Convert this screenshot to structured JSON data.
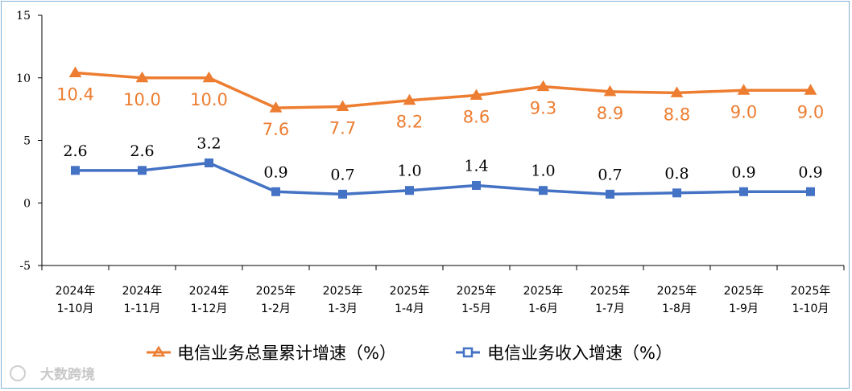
{
  "chart_data": {
    "type": "line",
    "title": "",
    "xlabel": "",
    "ylabel": "",
    "ylim": [
      -5,
      15
    ],
    "yticks": [
      -5,
      0,
      5,
      10,
      15
    ],
    "categories": [
      [
        "2024年",
        "1-10月"
      ],
      [
        "2024年",
        "1-11月"
      ],
      [
        "2024年",
        "1-12月"
      ],
      [
        "2025年",
        "1-2月"
      ],
      [
        "2025年",
        "1-3月"
      ],
      [
        "2025年",
        "1-4月"
      ],
      [
        "2025年",
        "1-5月"
      ],
      [
        "2025年",
        "1-6月"
      ],
      [
        "2025年",
        "1-7月"
      ],
      [
        "2025年",
        "1-8月"
      ],
      [
        "2025年",
        "1-9月"
      ],
      [
        "2025年",
        "1-10月"
      ]
    ],
    "series": [
      {
        "name": "电信业务总量累计增速（%）",
        "color": "#ED7D31",
        "marker": "triangle",
        "values": [
          10.4,
          10.0,
          10.0,
          7.6,
          7.7,
          8.2,
          8.6,
          9.3,
          8.9,
          8.8,
          9.0,
          9.0
        ],
        "labels": [
          "10.4",
          "10.0",
          "10.0",
          "7.6",
          "7.7",
          "8.2",
          "8.6",
          "9.3",
          "8.9",
          "8.8",
          "9.0",
          "9.0"
        ]
      },
      {
        "name": "电信业务收入增速（%）",
        "color": "#4472C4",
        "marker": "square",
        "values": [
          2.6,
          2.6,
          3.2,
          0.9,
          0.7,
          1.0,
          1.4,
          1.0,
          0.7,
          0.8,
          0.9,
          0.9
        ],
        "labels": [
          "2.6",
          "2.6",
          "3.2",
          "0.9",
          "0.7",
          "1.0",
          "1.4",
          "1.0",
          "0.7",
          "0.8",
          "0.9",
          "0.9"
        ]
      }
    ],
    "legend": "bottom-center"
  },
  "watermark": "大数跨境"
}
